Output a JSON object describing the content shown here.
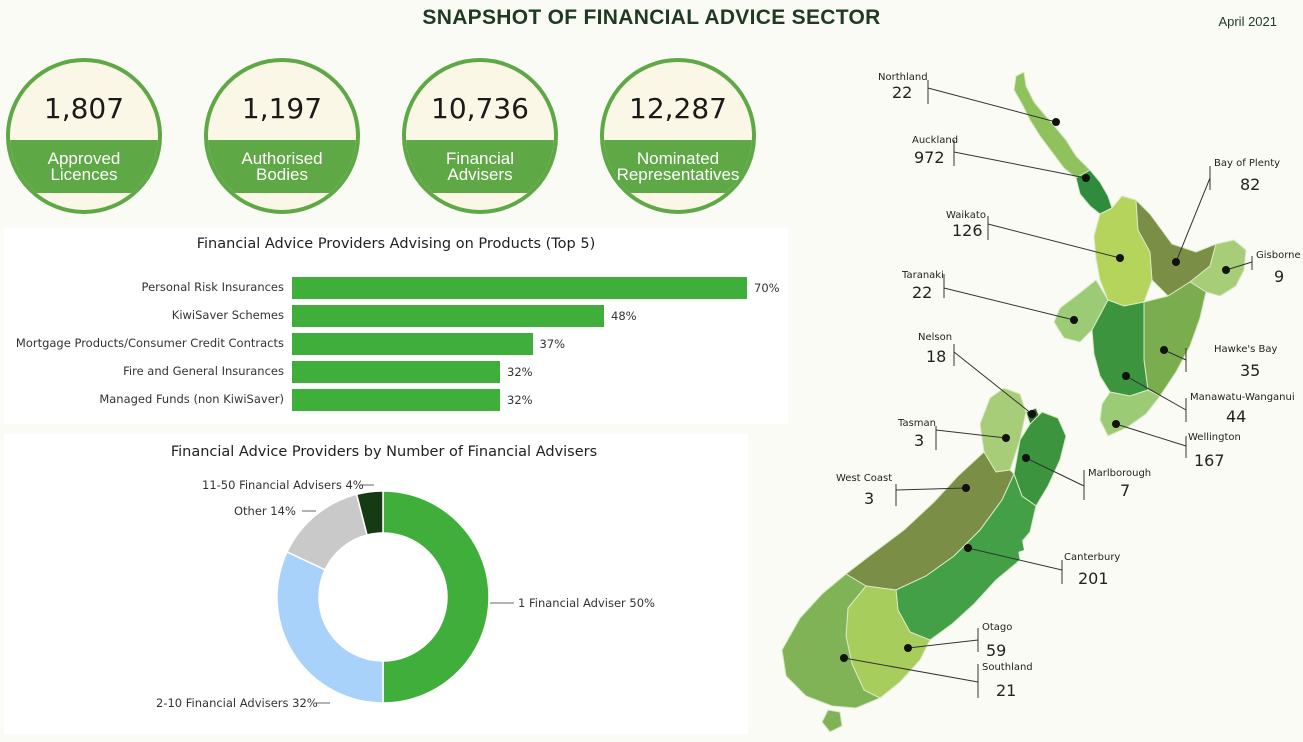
{
  "header": {
    "title": "SNAPSHOT OF FINANCIAL ADVICE SECTOR",
    "date": "April 2021"
  },
  "stats": [
    {
      "value": "1,807",
      "label": "Approved\nLicences"
    },
    {
      "value": "1,197",
      "label": "Authorised\nBodies"
    },
    {
      "value": "10,736",
      "label": "Financial\nAdvisers"
    },
    {
      "value": "12,287",
      "label": "Nominated\nRepresentatives"
    }
  ],
  "colors": {
    "accent": "#5fa846",
    "bar": "#3fae3a",
    "cream": "#fbf7e6"
  },
  "chart_data": [
    {
      "type": "bar",
      "orientation": "horizontal",
      "title": "Financial Advice Providers Advising on Products (Top 5)",
      "categories": [
        "Personal Risk Insurances",
        "KiwiSaver Schemes",
        "Mortgage Products/Consumer Credit Contracts",
        "Fire and General Insurances",
        "Managed Funds (non KiwiSaver)"
      ],
      "values": [
        70,
        48,
        37,
        32,
        32
      ],
      "value_labels": [
        "70%",
        "48%",
        "37%",
        "32%",
        "32%"
      ],
      "xlim": [
        0,
        70
      ],
      "grid": false
    },
    {
      "type": "pie",
      "donut": true,
      "title": "Financial Advice Providers by Number of Financial Advisers",
      "slices": [
        {
          "label": "1 Financial Adviser 50%",
          "value": 50,
          "color": "#3fae3a"
        },
        {
          "label": "2-10 Financial Advisers 32%",
          "value": 32,
          "color": "#a9d2fa"
        },
        {
          "label": "Other 14%",
          "value": 14,
          "color": "#c9c9c9"
        },
        {
          "label": "11-50 Financial Advisers 4%",
          "value": 4,
          "color": "#163a14"
        }
      ]
    }
  ],
  "map": {
    "regions": [
      {
        "name": "Northland",
        "value": "22"
      },
      {
        "name": "Auckland",
        "value": "972"
      },
      {
        "name": "Bay of Plenty",
        "value": "82"
      },
      {
        "name": "Waikato",
        "value": "126"
      },
      {
        "name": "Gisborne",
        "value": "9"
      },
      {
        "name": "Taranaki",
        "value": "22"
      },
      {
        "name": "Hawke's Bay",
        "value": "35"
      },
      {
        "name": "Nelson",
        "value": "18"
      },
      {
        "name": "Manawatu-Wanganui",
        "value": "44"
      },
      {
        "name": "Tasman",
        "value": "3"
      },
      {
        "name": "Wellington",
        "value": "167"
      },
      {
        "name": "West Coast",
        "value": "3"
      },
      {
        "name": "Marlborough",
        "value": "7"
      },
      {
        "name": "Canterbury",
        "value": "201"
      },
      {
        "name": "Otago",
        "value": "59"
      },
      {
        "name": "Southland",
        "value": "21"
      }
    ]
  }
}
